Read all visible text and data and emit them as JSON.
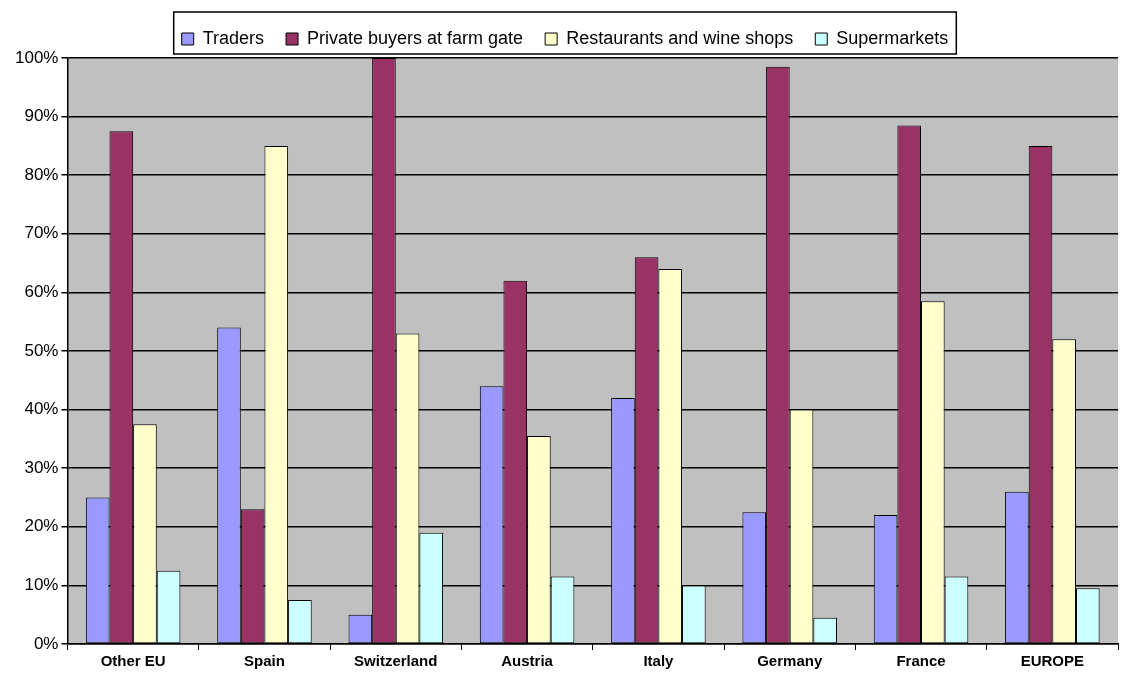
{
  "chart_data": {
    "type": "bar",
    "categories": [
      "Other EU",
      "Spain",
      "Switzerland",
      "Austria",
      "Italy",
      "Germany",
      "France",
      "EUROPE"
    ],
    "series": [
      {
        "name": "Traders",
        "color": "#9999ff",
        "values": [
          25,
          54,
          5,
          44,
          42,
          22.5,
          22,
          26
        ]
      },
      {
        "name": "Private buyers at farm gate",
        "color": "#993366",
        "values": [
          87.5,
          23,
          100,
          62,
          66,
          98.5,
          88.5,
          85
        ]
      },
      {
        "name": "Restaurants and wine shops",
        "color": "#ffffcc",
        "values": [
          37.5,
          85,
          53,
          35.5,
          64,
          40,
          58.5,
          52
        ]
      },
      {
        "name": "Supermarkets",
        "color": "#ccffff",
        "values": [
          12.5,
          7.5,
          19,
          11.5,
          10,
          4.5,
          11.5,
          9.5
        ]
      }
    ],
    "ylim": [
      0,
      100
    ],
    "yticks": [
      {
        "value": 0,
        "label": "0%"
      },
      {
        "value": 10,
        "label": "10%"
      },
      {
        "value": 20,
        "label": "20%"
      },
      {
        "value": 30,
        "label": "30%"
      },
      {
        "value": 40,
        "label": "40%"
      },
      {
        "value": 50,
        "label": "50%"
      },
      {
        "value": 60,
        "label": "60%"
      },
      {
        "value": 70,
        "label": "70%"
      },
      {
        "value": 80,
        "label": "80%"
      },
      {
        "value": 90,
        "label": "90%"
      },
      {
        "value": 100,
        "label": "100%"
      }
    ],
    "grid": "y",
    "legend": "top"
  }
}
